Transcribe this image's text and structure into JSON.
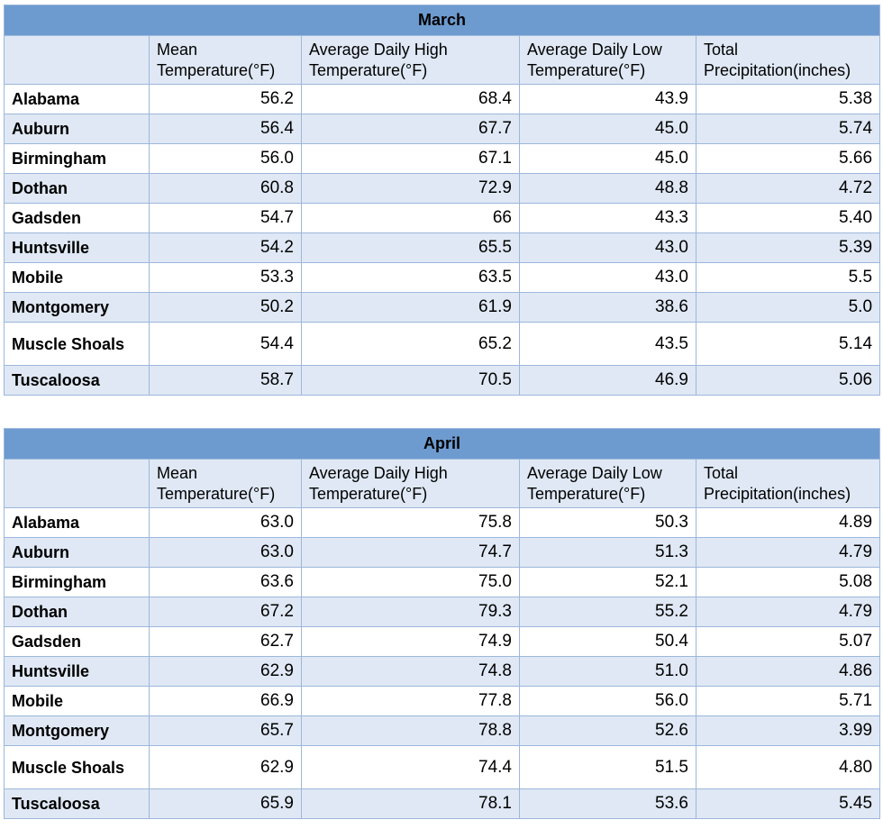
{
  "columns": [
    "Mean Temperature(°F)",
    "Average Daily High Temperature(°F)",
    "Average Daily Low Temperature(°F)",
    "Total Precipitation(inches)"
  ],
  "tables": [
    {
      "title": "March",
      "rows": [
        {
          "city": "Alabama",
          "values": [
            "56.2",
            "68.4",
            "43.9",
            "5.38"
          ]
        },
        {
          "city": "Auburn",
          "values": [
            "56.4",
            "67.7",
            "45.0",
            "5.74"
          ]
        },
        {
          "city": "Birmingham",
          "values": [
            "56.0",
            "67.1",
            "45.0",
            "5.66"
          ]
        },
        {
          "city": "Dothan",
          "values": [
            "60.8",
            "72.9",
            "48.8",
            "4.72"
          ]
        },
        {
          "city": "Gadsden",
          "values": [
            "54.7",
            "66",
            "43.3",
            "5.40"
          ]
        },
        {
          "city": "Huntsville",
          "values": [
            "54.2",
            "65.5",
            "43.0",
            "5.39"
          ]
        },
        {
          "city": "Mobile",
          "values": [
            "53.3",
            "63.5",
            "43.0",
            "5.5"
          ]
        },
        {
          "city": "Montgomery",
          "values": [
            "50.2",
            "61.9",
            "38.6",
            "5.0"
          ]
        },
        {
          "city": "Muscle Shoals",
          "values": [
            "54.4",
            "65.2",
            "43.5",
            "5.14"
          ]
        },
        {
          "city": "Tuscaloosa",
          "values": [
            "58.7",
            "70.5",
            "46.9",
            "5.06"
          ]
        }
      ]
    },
    {
      "title": "April",
      "rows": [
        {
          "city": "Alabama",
          "values": [
            "63.0",
            "75.8",
            "50.3",
            "4.89"
          ]
        },
        {
          "city": "Auburn",
          "values": [
            "63.0",
            "74.7",
            "51.3",
            "4.79"
          ]
        },
        {
          "city": "Birmingham",
          "values": [
            "63.6",
            "75.0",
            "52.1",
            "5.08"
          ]
        },
        {
          "city": "Dothan",
          "values": [
            "67.2",
            "79.3",
            "55.2",
            "4.79"
          ]
        },
        {
          "city": "Gadsden",
          "values": [
            "62.7",
            "74.9",
            "50.4",
            "5.07"
          ]
        },
        {
          "city": "Huntsville",
          "values": [
            "62.9",
            "74.8",
            "51.0",
            "4.86"
          ]
        },
        {
          "city": "Mobile",
          "values": [
            "66.9",
            "77.8",
            "56.0",
            "5.71"
          ]
        },
        {
          "city": "Montgomery",
          "values": [
            "65.7",
            "78.8",
            "52.6",
            "3.99"
          ]
        },
        {
          "city": "Muscle Shoals",
          "values": [
            "62.9",
            "74.4",
            "51.5",
            "4.80"
          ]
        },
        {
          "city": "Tuscaloosa",
          "values": [
            "65.9",
            "78.1",
            "53.6",
            "5.45"
          ]
        }
      ]
    }
  ]
}
